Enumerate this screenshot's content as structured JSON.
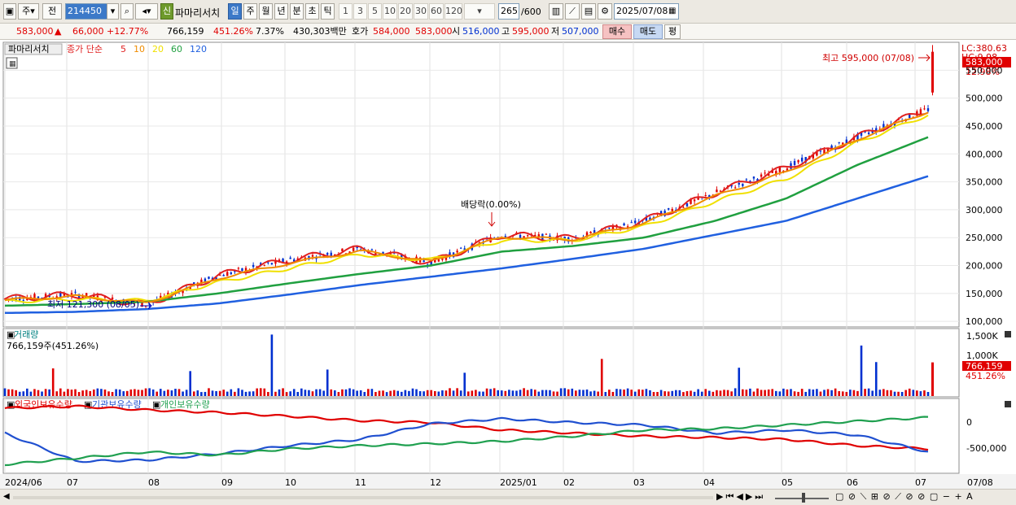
{
  "toolbar": {
    "period_day": "주",
    "prev_label": "전",
    "code": "214450",
    "name_badge": "신",
    "stock_name": "파마리서치",
    "periods": [
      "일",
      "주",
      "월",
      "년",
      "분",
      "초",
      "틱"
    ],
    "intervals": [
      "1",
      "3",
      "5",
      "10",
      "20",
      "30",
      "60",
      "120"
    ],
    "count": "265",
    "count_max": "/600",
    "date": "2025/07/08"
  },
  "quote": {
    "price": "583,000",
    "arrow": "▲",
    "change": "66,000",
    "change_pct": "+12.77%",
    "volume": "766,159",
    "volume_ratio": "451.26%",
    "turnover_pct": "7.37%",
    "amount": "430,303백만",
    "hoga_label": "호가",
    "ask": "584,000",
    "bid": "583,000",
    "open_label": "시",
    "open": "516,000",
    "high_label": "고",
    "high": "595,000",
    "low_label": "저",
    "low": "507,000",
    "buy_label": "매수",
    "sell_label": "매도",
    "avg_label": "평"
  },
  "price_panel": {
    "title": "파마리서치",
    "ma_prefix": "종가 단순",
    "ma_periods": [
      "5",
      "10",
      "20",
      "60",
      "120"
    ],
    "ma_colors": [
      "#e02020",
      "#f08c00",
      "#f0e000",
      "#20a040",
      "#2060e0"
    ],
    "lc_label": "LC:380.63",
    "hc_label": "HC:9.98",
    "last_price_tag": "583,000",
    "last_pct_tag": "12.98%",
    "high_annotation": "최고 595,000 (07/08)",
    "low_annotation": "최저 121,300 (08/05)",
    "dividend_annotation": "배당락(0.00%)",
    "y_ticks": [
      "550,000",
      "500,000",
      "450,000",
      "400,000",
      "350,000",
      "300,000",
      "250,000",
      "200,000",
      "150,000",
      "100,000"
    ]
  },
  "volume_panel": {
    "title": "거래량",
    "summary": "766,159주(451.26%)",
    "y_ticks": [
      "1,500K",
      "1,000K"
    ],
    "last_tag": "766,159",
    "last_pct_tag": "451.26%"
  },
  "holding_panel": {
    "legend": [
      "외국인보유수량",
      "기관보유수량",
      "개인보유수량"
    ],
    "y_ticks": [
      "0",
      "-500,000"
    ]
  },
  "x_axis": [
    "2024/06",
    "07",
    "08",
    "09",
    "10",
    "11",
    "12",
    "2025/01",
    "02",
    "03",
    "04",
    "05",
    "06",
    "07",
    "07/08"
  ],
  "chart_data": {
    "type": "line",
    "title": "파마리서치",
    "x": [
      "2024/06",
      "07",
      "08",
      "09",
      "10",
      "11",
      "12",
      "2025/01",
      "02",
      "03",
      "04",
      "05",
      "06",
      "07"
    ],
    "ylim": [
      90000,
      600000
    ],
    "series": [
      {
        "name": "5",
        "values": [
          140000,
          148000,
          130000,
          182000,
          210000,
          230000,
          205000,
          255000,
          248000,
          280000,
          330000,
          375000,
          430000,
          480000
        ]
      },
      {
        "name": "20",
        "values": [
          135000,
          140000,
          137000,
          170000,
          195000,
          220000,
          210000,
          245000,
          245000,
          270000,
          315000,
          355000,
          420000,
          470000
        ]
      },
      {
        "name": "60",
        "values": [
          128000,
          131000,
          135000,
          150000,
          168000,
          185000,
          200000,
          225000,
          235000,
          250000,
          280000,
          320000,
          380000,
          430000
        ]
      },
      {
        "name": "120",
        "values": [
          115000,
          117000,
          122000,
          132000,
          148000,
          165000,
          180000,
          195000,
          212000,
          230000,
          255000,
          280000,
          320000,
          360000
        ]
      }
    ],
    "volume_max_label": "1,500K",
    "holding_series": [
      "외국인보유수량",
      "기관보유수량",
      "개인보유수량"
    ]
  }
}
